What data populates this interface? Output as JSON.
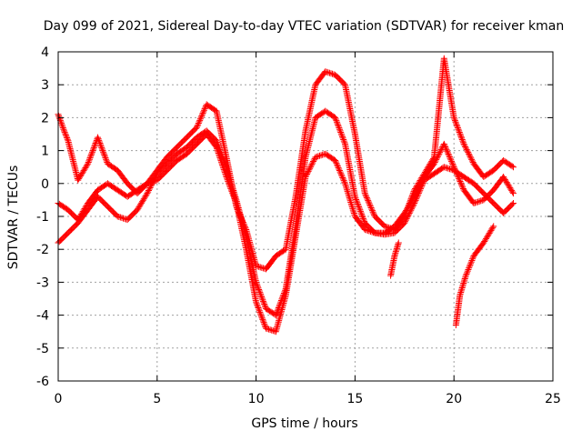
{
  "chart_data": {
    "type": "scatter",
    "title": "Day 099 of 2021, Sidereal Day-to-day VTEC variation (SDTVAR) for receiver kman",
    "xlabel": "GPS time / hours",
    "ylabel": "SDTVAR / TECUs",
    "xlim": [
      0,
      25
    ],
    "ylim": [
      -6,
      4
    ],
    "x_ticks": [
      0,
      5,
      10,
      15,
      20,
      25
    ],
    "y_ticks": [
      -6,
      -5,
      -4,
      -3,
      -2,
      -1,
      0,
      1,
      2,
      3,
      4
    ],
    "x_tick_labels": [
      "0",
      "5",
      "10",
      "15",
      "20",
      "25"
    ],
    "y_tick_labels": [
      "-6",
      "-5",
      "-4",
      "-3",
      "-2",
      "-1",
      "0",
      "1",
      "2",
      "3",
      "4"
    ],
    "grid": true,
    "marker": "plus",
    "color": "#ff0000",
    "series": [
      {
        "points": [
          [
            0,
            -0.6
          ],
          [
            0.5,
            -0.8
          ],
          [
            1,
            -1.1
          ],
          [
            1.5,
            -0.6
          ],
          [
            2,
            -0.2
          ],
          [
            2.5,
            0
          ],
          [
            3,
            -0.2
          ],
          [
            3.5,
            -0.4
          ],
          [
            4,
            -0.2
          ],
          [
            4.5,
            0
          ],
          [
            5,
            0.1
          ],
          [
            5.5,
            0.4
          ],
          [
            6,
            0.7
          ],
          [
            6.5,
            0.9
          ],
          [
            7,
            1.2
          ],
          [
            7.5,
            1.5
          ],
          [
            8,
            1.1
          ],
          [
            8.5,
            0.2
          ],
          [
            9,
            -0.6
          ],
          [
            9.5,
            -2
          ],
          [
            10,
            -3.6
          ],
          [
            10.5,
            -4.4
          ],
          [
            11,
            -4.5
          ],
          [
            11.5,
            -3.4
          ],
          [
            12,
            -1.6
          ],
          [
            12.5,
            0.2
          ],
          [
            13,
            0.8
          ],
          [
            13.5,
            0.9
          ],
          [
            14,
            0.7
          ],
          [
            14.5,
            0
          ],
          [
            15,
            -1
          ],
          [
            15.5,
            -1.4
          ],
          [
            16,
            -1.5
          ],
          [
            16.5,
            -1.55
          ],
          [
            17,
            -1.5
          ],
          [
            17.5,
            -1.2
          ],
          [
            18,
            -0.6
          ],
          [
            18.5,
            0.1
          ],
          [
            19,
            0.3
          ],
          [
            19.5,
            0.5
          ],
          [
            20,
            0.4
          ],
          [
            20.5,
            0.2
          ],
          [
            21,
            0
          ],
          [
            21.5,
            -0.3
          ],
          [
            22,
            -0.6
          ],
          [
            22.5,
            -0.9
          ],
          [
            23,
            -0.6
          ]
        ]
      },
      {
        "points": [
          [
            0,
            -1.8
          ],
          [
            0.5,
            -1.5
          ],
          [
            1,
            -1.2
          ],
          [
            1.5,
            -0.8
          ],
          [
            2,
            -0.4
          ],
          [
            2.5,
            -0.7
          ],
          [
            3,
            -1
          ],
          [
            3.5,
            -1.1
          ],
          [
            4,
            -0.8
          ],
          [
            4.5,
            -0.3
          ],
          [
            5,
            0.3
          ],
          [
            5.5,
            0.6
          ],
          [
            6,
            0.9
          ],
          [
            6.5,
            1.1
          ],
          [
            7,
            1.4
          ],
          [
            7.5,
            1.6
          ],
          [
            8,
            1.3
          ],
          [
            8.5,
            0.5
          ],
          [
            9,
            -0.5
          ],
          [
            9.5,
            -1.6
          ],
          [
            10,
            -3
          ],
          [
            10.5,
            -3.8
          ],
          [
            11,
            -4
          ],
          [
            11.5,
            -3.2
          ],
          [
            12,
            -1.3
          ],
          [
            12.5,
            0.8
          ],
          [
            13,
            2
          ],
          [
            13.5,
            2.2
          ],
          [
            14,
            2
          ],
          [
            14.5,
            1.2
          ],
          [
            15,
            -0.4
          ],
          [
            15.5,
            -1.2
          ],
          [
            16,
            -1.5
          ],
          [
            16.5,
            -1.5
          ],
          [
            17,
            -1.3
          ],
          [
            17.5,
            -0.9
          ],
          [
            18,
            -0.4
          ],
          [
            18.5,
            0.2
          ],
          [
            19,
            0.6
          ],
          [
            19.5,
            1.2
          ],
          [
            20,
            0.5
          ],
          [
            20.5,
            -0.2
          ],
          [
            21,
            -0.6
          ],
          [
            21.5,
            -0.5
          ],
          [
            22,
            -0.2
          ],
          [
            22.5,
            0.2
          ],
          [
            23,
            -0.3
          ]
        ]
      },
      {
        "points": [
          [
            0,
            2.1
          ],
          [
            0.3,
            1.6
          ],
          [
            0.5,
            1.3
          ],
          [
            1,
            0.1
          ],
          [
            1.5,
            0.6
          ],
          [
            2,
            1.4
          ],
          [
            2.5,
            0.6
          ],
          [
            3,
            0.4
          ],
          [
            3.5,
            0
          ],
          [
            4,
            -0.3
          ],
          [
            4.5,
            0
          ],
          [
            5,
            0.4
          ],
          [
            5.5,
            0.8
          ],
          [
            6,
            1.1
          ],
          [
            6.5,
            1.4
          ],
          [
            7,
            1.7
          ],
          [
            7.5,
            2.4
          ],
          [
            8,
            2.2
          ],
          [
            8.5,
            0.8
          ],
          [
            9,
            -0.7
          ],
          [
            9.5,
            -1.4
          ],
          [
            10,
            -2.5
          ],
          [
            10.5,
            -2.6
          ],
          [
            11,
            -2.2
          ],
          [
            11.5,
            -2
          ],
          [
            12,
            -0.4
          ],
          [
            12.5,
            1.6
          ],
          [
            13,
            3
          ],
          [
            13.5,
            3.4
          ],
          [
            14,
            3.3
          ],
          [
            14.5,
            3
          ],
          [
            15,
            1.5
          ],
          [
            15.5,
            -0.3
          ],
          [
            16,
            -1
          ],
          [
            16.5,
            -1.3
          ],
          [
            17,
            -1.4
          ],
          [
            17.5,
            -1
          ],
          [
            18,
            -0.2
          ],
          [
            18.5,
            0.3
          ],
          [
            19,
            0.8
          ],
          [
            19.5,
            3.8
          ],
          [
            20,
            2
          ],
          [
            20.5,
            1.2
          ],
          [
            21,
            0.6
          ],
          [
            21.5,
            0.2
          ],
          [
            22,
            0.4
          ],
          [
            22.5,
            0.7
          ],
          [
            23,
            0.5
          ]
        ]
      },
      {
        "points": [
          [
            16.8,
            -2.8
          ],
          [
            17,
            -2.2
          ],
          [
            17.2,
            -1.8
          ]
        ]
      },
      {
        "points": [
          [
            20.1,
            -4.3
          ],
          [
            20.3,
            -3.4
          ],
          [
            20.6,
            -2.8
          ],
          [
            21,
            -2.2
          ],
          [
            21.5,
            -1.8
          ],
          [
            22,
            -1.3
          ]
        ]
      }
    ]
  }
}
